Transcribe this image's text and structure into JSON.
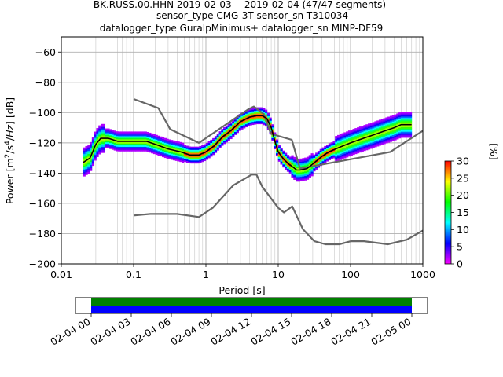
{
  "header": {
    "line1": "BK.RUSS.00.HHN   2019-02-03 -- 2019-02-04  (47/47 segments)",
    "line2": "sensor_type CMG-3T sensor_sn T310034",
    "line3": "datalogger_type GuralpMinimus+ datalogger_sn MINP-DF59"
  },
  "chart_data": [
    {
      "type": "heatmap",
      "title": "",
      "xlabel": "Period [s]",
      "ylabel": "Power [m2/s4/Hz] [dB]",
      "xscale": "log",
      "xlim": [
        0.01,
        1000
      ],
      "ylim": [
        -200,
        -50
      ],
      "xticks": [
        0.01,
        0.1,
        1,
        10,
        100,
        1000
      ],
      "xtick_labels": [
        "0.01",
        "0.1",
        "1",
        "10",
        "100",
        "1000"
      ],
      "yticks": [
        -200,
        -180,
        -160,
        -140,
        -120,
        -100,
        -80,
        -60
      ],
      "ytick_labels": [
        "−200",
        "−180",
        "−160",
        "−140",
        "−120",
        "−100",
        "−80",
        "−60"
      ],
      "grid": true,
      "colormap": [
        "#ff00ff",
        "#0000ff",
        "#00ffff",
        "#00ff00",
        "#ffff00",
        "#ff0000"
      ],
      "colorbar": {
        "label": "[%]",
        "range": [
          0,
          30
        ],
        "ticks": [
          0,
          5,
          10,
          15,
          20,
          25,
          30
        ],
        "tick_labels": [
          "0",
          "5",
          "10",
          "15",
          "20",
          "25",
          "30"
        ]
      },
      "series": [
        {
          "role": "high-noise-model",
          "color": "#666666",
          "x": [
            0.1,
            0.22,
            0.32,
            0.8,
            3.8,
            4.6,
            6.3,
            7.9,
            15.4,
            20,
            354.8,
            1000
          ],
          "y": [
            -91,
            -97,
            -111,
            -120,
            -98,
            -96,
            -101,
            -114,
            -118,
            -137,
            -126,
            -112
          ]
        },
        {
          "role": "low-noise-model",
          "color": "#666666",
          "x": [
            0.1,
            0.17,
            0.4,
            0.8,
            1.24,
            2.4,
            4.3,
            5,
            6,
            10,
            12,
            15.6,
            21.9,
            31.6,
            45,
            70,
            101,
            154,
            328,
            600,
            1000
          ],
          "y": [
            -168,
            -167,
            -167,
            -169,
            -163,
            -148,
            -141,
            -141,
            -149,
            -163,
            -166,
            -162,
            -177,
            -185,
            -187,
            -187,
            -185,
            -185,
            -187,
            -184,
            -178
          ]
        },
        {
          "role": "mode",
          "color": "#000000",
          "x": [
            0.02,
            0.025,
            0.03,
            0.035,
            0.045,
            0.06,
            0.08,
            0.1,
            0.15,
            0.2,
            0.3,
            0.45,
            0.6,
            0.8,
            1.0,
            1.3,
            1.7,
            2.2,
            3.0,
            4.0,
            5.0,
            6.0,
            7.0,
            8.0,
            9.0,
            10.0,
            12.0,
            14.0,
            16.0,
            18.0,
            20.0,
            25.0,
            30.0,
            40.0,
            50.0,
            70.0,
            100.0,
            150.0,
            200.0,
            300.0,
            400.0,
            500.0,
            600.0,
            700.0
          ],
          "y": [
            -133,
            -130,
            -121,
            -117,
            -117,
            -119,
            -119,
            -119,
            -119,
            -121,
            -124,
            -126,
            -128,
            -128,
            -126,
            -122,
            -116,
            -112,
            -106,
            -103,
            -102,
            -102,
            -104,
            -110,
            -119,
            -126,
            -131,
            -134,
            -136,
            -138,
            -138,
            -137,
            -134,
            -129,
            -126,
            -123,
            -120,
            -117,
            -115,
            -112,
            -110,
            -108,
            -108,
            -108
          ]
        }
      ]
    },
    {
      "type": "bar",
      "title": "",
      "role": "data-availability",
      "xlim": [
        "02-04 00",
        "02-05 00"
      ],
      "xticks": [
        "02-04 00",
        "02-04 03",
        "02-04 06",
        "02-04 09",
        "02-04 12",
        "02-04 15",
        "02-04 18",
        "02-04 21",
        "02-05 00"
      ],
      "xtick_fraction": [
        0,
        0.125,
        0.25,
        0.375,
        0.5,
        0.625,
        0.75,
        0.875,
        1
      ],
      "bands": [
        {
          "color": "#008000",
          "start_fraction": 0,
          "end_fraction": 1
        },
        {
          "color": "#0000ff",
          "start_fraction": 0,
          "end_fraction": 1
        }
      ]
    }
  ]
}
